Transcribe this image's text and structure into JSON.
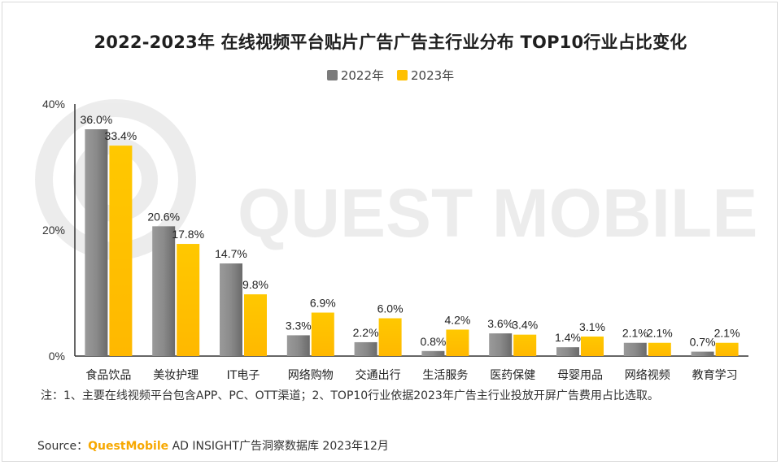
{
  "title": "2022-2023年 在线视频平台贴片广告广告主行业分布 TOP10行业占比变化",
  "legend": [
    {
      "label": "2022年",
      "color": "#7b7b7b"
    },
    {
      "label": "2023年",
      "color": "#ffc000"
    }
  ],
  "watermark": "QUEST MOBILE",
  "note": "注：1、主要在线视频平台包含APP、PC、OTT渠道；2、TOP10行业依据2023年广告主行业投放开屏广告费用占比选取。",
  "source": {
    "prefix": "Source：",
    "brand": "QuestMobile",
    "rest": " AD INSIGHT广告洞察数据库 2023年12月"
  },
  "chart_data": {
    "type": "bar",
    "categories": [
      "食品饮品",
      "美妆护理",
      "IT电子",
      "网络购物",
      "交通出行",
      "生活服务",
      "医药保健",
      "母婴用品",
      "网络视频",
      "教育学习"
    ],
    "series": [
      {
        "name": "2022年",
        "color": "#7b7b7b",
        "values": [
          36.0,
          20.6,
          14.7,
          3.3,
          2.2,
          0.8,
          3.6,
          1.4,
          2.1,
          0.7
        ],
        "labels": [
          "36.0%",
          "20.6%",
          "14.7%",
          "3.3%",
          "2.2%",
          "0.8%",
          "3.6%",
          "1.4%",
          "2.1%",
          "0.7%"
        ]
      },
      {
        "name": "2023年",
        "color": "#ffc000",
        "values": [
          33.4,
          17.8,
          9.8,
          6.9,
          6.0,
          4.2,
          3.4,
          3.1,
          2.1,
          2.1
        ],
        "labels": [
          "33.4%",
          "17.8%",
          "9.8%",
          "6.9%",
          "6.0%",
          "4.2%",
          "3.4%",
          "3.1%",
          "2.1%",
          "2.1%"
        ]
      }
    ],
    "yticks": [
      "0%",
      "20%",
      "40%"
    ],
    "ytick_values": [
      0,
      20,
      40
    ],
    "ylim": [
      0,
      40
    ],
    "grid": false,
    "legend_position": "top-center"
  }
}
